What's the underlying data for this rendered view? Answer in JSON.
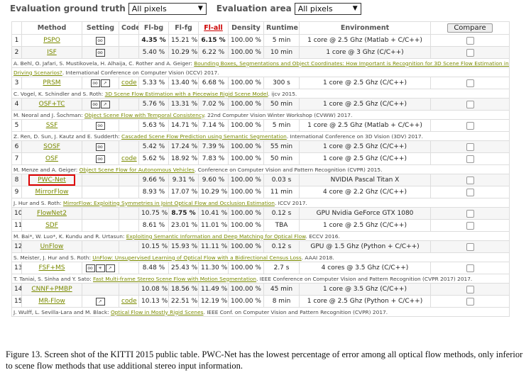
{
  "filters": {
    "truth_label": "Evaluation ground truth",
    "truth_value": "All pixels",
    "area_label": "Evaluation area",
    "area_value": "All pixels"
  },
  "headers": [
    "Method",
    "Setting",
    "Code",
    "Fl-bg",
    "Fl-fg",
    "Fl-all",
    "Density",
    "Runtime",
    "Environment",
    "Compare"
  ],
  "rows": [
    {
      "rank": "1",
      "method": "PSPO",
      "setting": [
        "stereo"
      ],
      "code": "",
      "fl_bg": "4.35 %",
      "fl_fg": "15.21 %",
      "fl_all": "6.15 %",
      "density": "100.00 %",
      "runtime": "5 min",
      "env": "1 core @ 2.5 Ghz (Matlab + C/C++)",
      "bold": [
        "fl_bg",
        "fl_all"
      ],
      "ref": null
    },
    {
      "rank": "2",
      "method": "ISF",
      "setting": [
        "stereo"
      ],
      "code": "",
      "fl_bg": "5.40 %",
      "fl_fg": "10.29 %",
      "fl_all": "6.22 %",
      "density": "100.00 %",
      "runtime": "10 min",
      "env": "1 core @ 3 Ghz (C/C++)",
      "bold": [],
      "ref": {
        "pre": "A. Behl, O. Jafari, S. Mustikovela, H. Alhaija, C. Rother and A. Geiger: ",
        "link": "Bounding Boxes, Segmentations and Object Coordinates: How Important is Recognition for 3D Scene Flow Estimation in Autonomous",
        "post": ""
      },
      "ref2": {
        "pre": "",
        "link": "Driving Scenarios?",
        "post": ". International Conference on Computer Vision (ICCV) 2017."
      }
    },
    {
      "rank": "3",
      "method": "PRSM",
      "setting": [
        "stereo",
        "flow"
      ],
      "code": "code",
      "fl_bg": "5.33 %",
      "fl_fg": "13.40 %",
      "fl_all": "6.68 %",
      "density": "100.00 %",
      "runtime": "300 s",
      "env": "1 core @ 2.5 Ghz (C/C++)",
      "bold": [],
      "ref": {
        "pre": "C. Vogel, K. Schindler and S. Roth: ",
        "link": "3D Scene Flow Estimation with a Piecewise Rigid Scene Model",
        "post": ". ijcv 2015."
      }
    },
    {
      "rank": "4",
      "method": "OSF+TC",
      "setting": [
        "stereo",
        "flow"
      ],
      "code": "",
      "fl_bg": "5.76 %",
      "fl_fg": "13.31 %",
      "fl_all": "7.02 %",
      "density": "100.00 %",
      "runtime": "50 min",
      "env": "1 core @ 2.5 Ghz (C/C++)",
      "bold": [],
      "ref": {
        "pre": "M. Neoral and J. Šochman: ",
        "link": "Object Scene Flow with Temporal Consistency",
        "post": ". 22nd Computer Vision Winter Workshop (CVWW) 2017."
      }
    },
    {
      "rank": "5",
      "method": "SSF",
      "setting": [
        "stereo"
      ],
      "code": "",
      "fl_bg": "5.63 %",
      "fl_fg": "14.71 %",
      "fl_all": "7.14 %",
      "density": "100.00 %",
      "runtime": "5 min",
      "env": "1 core @ 2.5 Ghz (Matlab + C/C++)",
      "bold": [],
      "ref": {
        "pre": "Z. Ren, D. Sun, J. Kautz and E. Sudderth: ",
        "link": "Cascaded Scene Flow Prediction using Semantic Segmentation",
        "post": ". International Conference on 3D Vision (3DV) 2017."
      }
    },
    {
      "rank": "6",
      "method": "SOSF",
      "setting": [
        "stereo"
      ],
      "code": "",
      "fl_bg": "5.42 %",
      "fl_fg": "17.24 %",
      "fl_all": "7.39 %",
      "density": "100.00 %",
      "runtime": "55 min",
      "env": "1 core @ 2.5 Ghz (C/C++)",
      "bold": [],
      "ref": null
    },
    {
      "rank": "7",
      "method": "OSF",
      "setting": [
        "stereo"
      ],
      "code": "code",
      "fl_bg": "5.62 %",
      "fl_fg": "18.92 %",
      "fl_all": "7.83 %",
      "density": "100.00 %",
      "runtime": "50 min",
      "env": "1 core @ 2.5 Ghz (C/C++)",
      "bold": [],
      "ref": {
        "pre": "M. Menze and A. Geiger: ",
        "link": "Object Scene Flow for Autonomous Vehicles",
        "post": ". Conference on Computer Vision and Pattern Recognition (CVPR) 2015."
      }
    },
    {
      "rank": "8",
      "method": "PWC-Net",
      "setting": [],
      "code": "",
      "fl_bg": "9.66 %",
      "fl_fg": "9.31 %",
      "fl_all": "9.60 %",
      "density": "100.00 %",
      "runtime": "0.03 s",
      "env": "NVIDIA Pascal Titan X",
      "bold": [],
      "highlight": true,
      "ref": null
    },
    {
      "rank": "9",
      "method": "MirrorFlow",
      "setting": [],
      "code": "",
      "fl_bg": "8.93 %",
      "fl_fg": "17.07 %",
      "fl_all": "10.29 %",
      "density": "100.00 %",
      "runtime": "11 min",
      "env": "4 core @ 2.2 Ghz (C/C++)",
      "bold": [],
      "ref": {
        "pre": "J. Hur and S. Roth: ",
        "link": "MirrorFlow: Exploiting Symmetries in Joint Optical Flow and Occlusion Estimation",
        "post": ". ICCV 2017."
      }
    },
    {
      "rank": "10",
      "method": "FlowNet2",
      "setting": [],
      "code": "",
      "fl_bg": "10.75 %",
      "fl_fg": "8.75 %",
      "fl_all": "10.41 %",
      "density": "100.00 %",
      "runtime": "0.12 s",
      "env": "GPU Nvidia GeForce GTX 1080",
      "bold": [
        "fl_fg"
      ],
      "ref": null
    },
    {
      "rank": "11",
      "method": "SDF",
      "setting": [],
      "code": "",
      "fl_bg": "8.61 %",
      "fl_fg": "23.01 %",
      "fl_all": "11.01 %",
      "density": "100.00 %",
      "runtime": "TBA",
      "env": "1 core @ 2.5 Ghz (C/C++)",
      "bold": [],
      "ref": {
        "pre": "M. Bai*, W. Luo*, K. Kundu and R. Urtasun: ",
        "link": "Exploiting Semantic Information and Deep Matching for Optical Flow",
        "post": ". ECCV 2016."
      }
    },
    {
      "rank": "12",
      "method": "UnFlow",
      "setting": [],
      "code": "",
      "fl_bg": "10.15 %",
      "fl_fg": "15.93 %",
      "fl_all": "11.11 %",
      "density": "100.00 %",
      "runtime": "0.12 s",
      "env": "GPU @ 1.5 Ghz (Python + C/C++)",
      "bold": [],
      "ref": {
        "pre": "S. Meister, J. Hur and S. Roth: ",
        "link": "UnFlow: Unsupervised Learning of Optical Flow with a Bidirectional Census Loss",
        "post": ". AAAI 2018."
      }
    },
    {
      "rank": "13",
      "method": "FSF+MS",
      "setting": [
        "stereo",
        "ms",
        "flow"
      ],
      "code": "",
      "fl_bg": "8.48 %",
      "fl_fg": "25.43 %",
      "fl_all": "11.30 %",
      "density": "100.00 %",
      "runtime": "2.7 s",
      "env": "4 cores @ 3.5 Ghz (C/C++)",
      "bold": [],
      "ref": {
        "pre": "T. Taniai, S. Sinha and Y. Sato: ",
        "link": "Fast Multi-frame Stereo Scene Flow with Motion Segmentation",
        "post": ". IEEE Conference on Computer Vision and Pattern Recognition (CVPR 2017) 2017."
      }
    },
    {
      "rank": "14",
      "method": "CNNF+PMBP",
      "setting": [],
      "code": "",
      "fl_bg": "10.08 %",
      "fl_fg": "18.56 %",
      "fl_all": "11.49 %",
      "density": "100.00 %",
      "runtime": "45 min",
      "env": "1 core @ 3.5 Ghz (C/C++)",
      "bold": [],
      "ref": null
    },
    {
      "rank": "15",
      "method": "MR-Flow",
      "setting": [
        "flow"
      ],
      "code": "code",
      "fl_bg": "10.13 %",
      "fl_fg": "22.51 %",
      "fl_all": "12.19 %",
      "density": "100.00 %",
      "runtime": "8 min",
      "env": "1 core @ 2.5 Ghz (Python + C/C++)",
      "bold": [],
      "ref": {
        "pre": "J. Wulff, L. Sevilla-Lara and M. Black: ",
        "link": "Optical Flow in Mostly Rigid Scenes",
        "post": ". IEEE Conf. on Computer Vision and Pattern Recognition (CVPR) 2017."
      }
    }
  ],
  "badge_glyphs": {
    "stereo": "oo",
    "flow": "↗",
    "ms": "✳"
  },
  "caption": "Figure 13. Screen shot of the KITTI 2015 public table. PWC-Net has the lowest percentage of error among all optical flow methods, only inferior to scene flow methods that use additional stereo input information."
}
